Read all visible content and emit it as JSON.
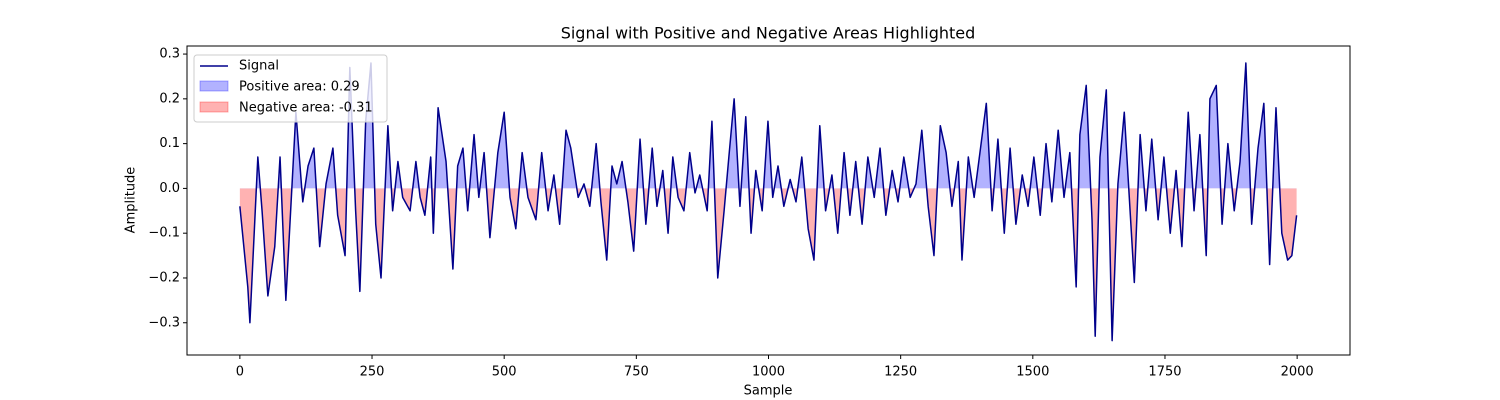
{
  "chart_data": {
    "type": "line",
    "title": "Signal with Positive and Negative Areas Highlighted",
    "x_label": "Sample",
    "y_label": "Amplitude",
    "x": [
      0,
      15,
      19,
      34,
      42,
      53,
      66,
      76,
      87,
      106,
      119,
      129,
      140,
      151,
      163,
      176,
      185,
      199,
      208,
      219,
      227,
      238,
      248,
      257,
      267,
      280,
      289,
      299,
      308,
      322,
      333,
      341,
      350,
      361,
      366,
      375,
      390,
      403,
      412,
      422,
      431,
      443,
      452,
      462,
      473,
      488,
      500,
      511,
      522,
      534,
      545,
      560,
      571,
      583,
      594,
      605,
      617,
      626,
      640,
      651,
      662,
      674,
      683,
      694,
      704,
      713,
      723,
      734,
      745,
      757,
      768,
      780,
      789,
      800,
      810,
      819,
      829,
      840,
      851,
      861,
      870,
      884,
      893,
      904,
      916,
      925,
      935,
      946,
      957,
      967,
      976,
      988,
      999,
      1008,
      1018,
      1029,
      1041,
      1052,
      1063,
      1075,
      1086,
      1097,
      1108,
      1120,
      1131,
      1143,
      1154,
      1165,
      1177,
      1188,
      1200,
      1211,
      1222,
      1234,
      1245,
      1256,
      1268,
      1279,
      1290,
      1302,
      1313,
      1325,
      1336,
      1347,
      1359,
      1366,
      1378,
      1389,
      1400,
      1412,
      1423,
      1434,
      1446,
      1457,
      1468,
      1480,
      1491,
      1502,
      1514,
      1525,
      1536,
      1548,
      1559,
      1570,
      1582,
      1589,
      1601,
      1612,
      1618,
      1627,
      1639,
      1650,
      1661,
      1673,
      1684,
      1692,
      1703,
      1714,
      1725,
      1737,
      1748,
      1760,
      1771,
      1782,
      1794,
      1805,
      1816,
      1828,
      1835,
      1847,
      1858,
      1869,
      1881,
      1892,
      1903,
      1914,
      1926,
      1937,
      1948,
      1960,
      1971,
      1982,
      1990,
      1999
    ],
    "series": [
      {
        "name": "Signal",
        "color": "#00008b",
        "values": [
          -0.04,
          -0.22,
          -0.3,
          0.07,
          -0.05,
          -0.24,
          -0.13,
          0.07,
          -0.25,
          0.17,
          -0.03,
          0.05,
          0.09,
          -0.13,
          0.01,
          0.09,
          -0.06,
          -0.15,
          0.27,
          -0.05,
          -0.23,
          0.15,
          0.28,
          -0.08,
          -0.2,
          0.14,
          -0.05,
          0.06,
          -0.02,
          -0.05,
          0.06,
          -0.02,
          -0.06,
          0.07,
          -0.1,
          0.18,
          0.06,
          -0.18,
          0.05,
          0.09,
          -0.05,
          0.12,
          -0.02,
          0.08,
          -0.11,
          0.08,
          0.17,
          -0.02,
          -0.09,
          0.08,
          -0.02,
          -0.07,
          0.08,
          -0.05,
          0.03,
          -0.08,
          0.13,
          0.09,
          -0.02,
          0.01,
          -0.04,
          0.1,
          -0.03,
          -0.16,
          0.05,
          0.01,
          0.06,
          -0.03,
          -0.14,
          0.11,
          -0.08,
          0.09,
          -0.04,
          0.04,
          -0.1,
          0.07,
          -0.02,
          -0.05,
          0.08,
          -0.01,
          0.03,
          -0.05,
          0.15,
          -0.2,
          -0.05,
          0.07,
          0.2,
          -0.04,
          0.16,
          -0.1,
          0.04,
          -0.05,
          0.15,
          -0.02,
          0.05,
          -0.04,
          0.02,
          -0.03,
          0.07,
          -0.09,
          -0.16,
          0.14,
          -0.05,
          0.03,
          -0.1,
          0.08,
          -0.06,
          0.06,
          -0.08,
          0.07,
          -0.02,
          0.09,
          -0.06,
          0.04,
          -0.03,
          0.07,
          -0.02,
          0.01,
          0.13,
          -0.04,
          -0.15,
          0.14,
          0.08,
          -0.04,
          0.06,
          -0.16,
          0.07,
          -0.02,
          0.08,
          0.19,
          -0.05,
          0.11,
          -0.1,
          0.09,
          -0.08,
          0.03,
          -0.04,
          0.07,
          -0.06,
          0.1,
          -0.03,
          0.13,
          -0.02,
          0.08,
          -0.22,
          0.12,
          0.23,
          -0.07,
          -0.33,
          0.07,
          0.22,
          -0.34,
          0.01,
          0.17,
          -0.05,
          -0.21,
          0.12,
          -0.05,
          0.11,
          -0.07,
          0.07,
          -0.1,
          0.04,
          -0.13,
          0.17,
          -0.05,
          0.12,
          -0.15,
          0.2,
          0.23,
          -0.08,
          0.1,
          -0.05,
          0.06,
          0.28,
          -0.08,
          0.09,
          0.19,
          -0.17,
          0.18,
          -0.1,
          -0.16,
          -0.15,
          -0.06
        ]
      }
    ],
    "positive_fill": {
      "name": "Positive area: 0.29",
      "color": "#0000ff"
    },
    "negative_fill": {
      "name": "Negative area: -0.31",
      "color": "#ff0000"
    },
    "xlim": [
      -100,
      2100
    ],
    "xticks": [
      0,
      250,
      500,
      750,
      1000,
      1250,
      1500,
      1750,
      2000
    ],
    "ylim": [
      -0.372,
      0.318
    ],
    "yticks": [
      {
        "value": -0.3,
        "label": "−0.3"
      },
      {
        "value": -0.2,
        "label": "−0.2"
      },
      {
        "value": -0.1,
        "label": "−0.1"
      },
      {
        "value": 0,
        "label": "0.0"
      },
      0.1,
      0.2,
      0.3
    ],
    "legend": "upper left"
  }
}
